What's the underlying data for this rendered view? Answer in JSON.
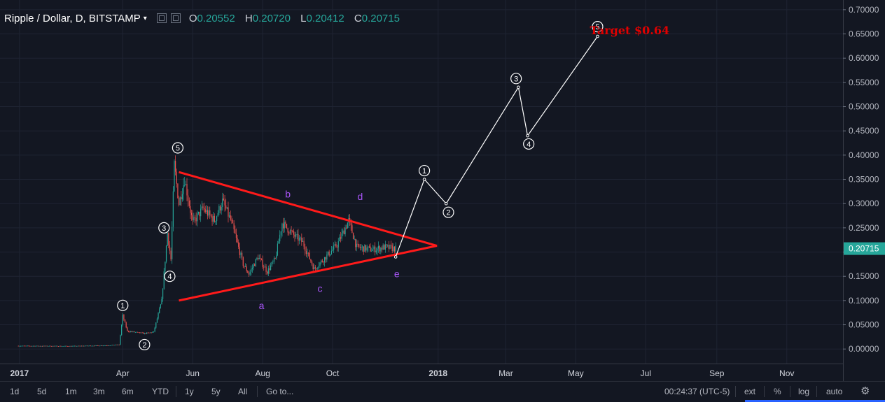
{
  "header": {
    "title": "Ripple / Dollar, D, BITSTAMP",
    "ohlc": [
      {
        "key": "O",
        "value": "0.20552"
      },
      {
        "key": "H",
        "value": "0.20720"
      },
      {
        "key": "L",
        "value": "0.20412"
      },
      {
        "key": "C",
        "value": "0.20715"
      }
    ]
  },
  "colors": {
    "background": "#131722",
    "grid": "#1f2433",
    "up": "#26a69a",
    "down": "#ef5350",
    "triangle": "#ff1a1a",
    "projection": "#ffffff",
    "abcde": "#a855f7",
    "target": "#e00000",
    "price_badge": "#26a69a"
  },
  "chart_data": {
    "type": "candlestick",
    "y_ticks": [
      "0.70000",
      "0.65000",
      "0.60000",
      "0.55000",
      "0.50000",
      "0.45000",
      "0.40000",
      "0.35000",
      "0.30000",
      "0.25000",
      "0.20000",
      "0.15000",
      "0.10000",
      "0.05000",
      "0.00000"
    ],
    "ylim": [
      -0.03,
      0.72
    ],
    "x_labels": [
      {
        "label": "2017",
        "date": "2017-01-01"
      },
      {
        "label": "Apr",
        "date": "2017-04-01"
      },
      {
        "label": "Jun",
        "date": "2017-06-01"
      },
      {
        "label": "Aug",
        "date": "2017-08-01"
      },
      {
        "label": "Oct",
        "date": "2017-10-01"
      },
      {
        "label": "2018",
        "date": "2018-01-01"
      },
      {
        "label": "Mar",
        "date": "2018-03-01"
      },
      {
        "label": "May",
        "date": "2018-05-01"
      },
      {
        "label": "Jul",
        "date": "2018-07-01"
      },
      {
        "label": "Sep",
        "date": "2018-09-01"
      },
      {
        "label": "Nov",
        "date": "2018-11-01"
      }
    ],
    "xlim": [
      "2016-12-15",
      "2018-12-20"
    ],
    "price_path": [
      [
        "2016-12-31",
        0.0065
      ],
      [
        "2017-02-15",
        0.006
      ],
      [
        "2017-03-20",
        0.0075
      ],
      [
        "2017-03-29",
        0.009
      ],
      [
        "2017-04-01",
        0.069
      ],
      [
        "2017-04-05",
        0.037
      ],
      [
        "2017-04-20",
        0.032
      ],
      [
        "2017-04-28",
        0.035
      ],
      [
        "2017-05-05",
        0.1
      ],
      [
        "2017-05-10",
        0.24
      ],
      [
        "2017-05-13",
        0.185
      ],
      [
        "2017-05-16",
        0.38
      ],
      [
        "2017-05-20",
        0.3
      ],
      [
        "2017-05-25",
        0.35
      ],
      [
        "2017-06-01",
        0.26
      ],
      [
        "2017-06-10",
        0.29
      ],
      [
        "2017-06-20",
        0.265
      ],
      [
        "2017-06-27",
        0.305
      ],
      [
        "2017-07-05",
        0.26
      ],
      [
        "2017-07-15",
        0.175
      ],
      [
        "2017-07-20",
        0.155
      ],
      [
        "2017-07-28",
        0.19
      ],
      [
        "2017-08-05",
        0.16
      ],
      [
        "2017-08-12",
        0.185
      ],
      [
        "2017-08-18",
        0.26
      ],
      [
        "2017-08-28",
        0.235
      ],
      [
        "2017-09-05",
        0.22
      ],
      [
        "2017-09-15",
        0.165
      ],
      [
        "2017-09-25",
        0.19
      ],
      [
        "2017-10-05",
        0.215
      ],
      [
        "2017-10-15",
        0.265
      ],
      [
        "2017-10-22",
        0.21
      ],
      [
        "2017-11-05",
        0.205
      ],
      [
        "2017-11-15",
        0.21
      ],
      [
        "2017-11-25",
        0.2071
      ]
    ],
    "triangle": {
      "upper": [
        [
          "2017-05-20",
          0.365
        ],
        [
          "2017-12-31",
          0.213
        ]
      ],
      "lower": [
        [
          "2017-05-20",
          0.1
        ],
        [
          "2017-12-31",
          0.213
        ]
      ]
    },
    "projection": [
      [
        "2017-11-25",
        0.19
      ],
      [
        "2017-12-20",
        0.35
      ],
      [
        "2018-01-08",
        0.3
      ],
      [
        "2018-03-12",
        0.54
      ],
      [
        "2018-03-20",
        0.44
      ],
      [
        "2018-05-20",
        0.645
      ]
    ],
    "wave_labels": [
      {
        "text": "1",
        "date": "2017-04-01",
        "price": 0.09
      },
      {
        "text": "2",
        "date": "2017-04-20",
        "price": 0.009
      },
      {
        "text": "3",
        "date": "2017-05-07",
        "price": 0.25
      },
      {
        "text": "4",
        "date": "2017-05-12",
        "price": 0.15
      },
      {
        "text": "5",
        "date": "2017-05-19",
        "price": 0.415
      },
      {
        "text": "1",
        "date": "2017-12-20",
        "price": 0.368
      },
      {
        "text": "2",
        "date": "2018-01-10",
        "price": 0.282
      },
      {
        "text": "3",
        "date": "2018-03-10",
        "price": 0.558
      },
      {
        "text": "4",
        "date": "2018-03-21",
        "price": 0.423
      },
      {
        "text": "5",
        "date": "2018-05-20",
        "price": 0.665
      }
    ],
    "abcde_labels": [
      {
        "text": "a",
        "date": "2017-07-31",
        "price": 0.09
      },
      {
        "text": "b",
        "date": "2017-08-23",
        "price": 0.32
      },
      {
        "text": "c",
        "date": "2017-09-20",
        "price": 0.125
      },
      {
        "text": "d",
        "date": "2017-10-25",
        "price": 0.315
      },
      {
        "text": "e",
        "date": "2017-11-26",
        "price": 0.155
      }
    ],
    "target_label": {
      "text": "Target $0.64",
      "date": "2018-06-17",
      "price": 0.658
    },
    "last_price": 0.20715,
    "last_price_label": "0.20715"
  },
  "bottombar": {
    "ranges": [
      "1d",
      "5d",
      "1m",
      "3m",
      "6m",
      "YTD",
      "1y",
      "5y",
      "All"
    ],
    "goto": "Go to...",
    "time": "00:24:37 (UTC-5)",
    "ext": "ext",
    "percent": "%",
    "log": "log",
    "auto": "auto",
    "settings_icon": "gear-icon"
  }
}
